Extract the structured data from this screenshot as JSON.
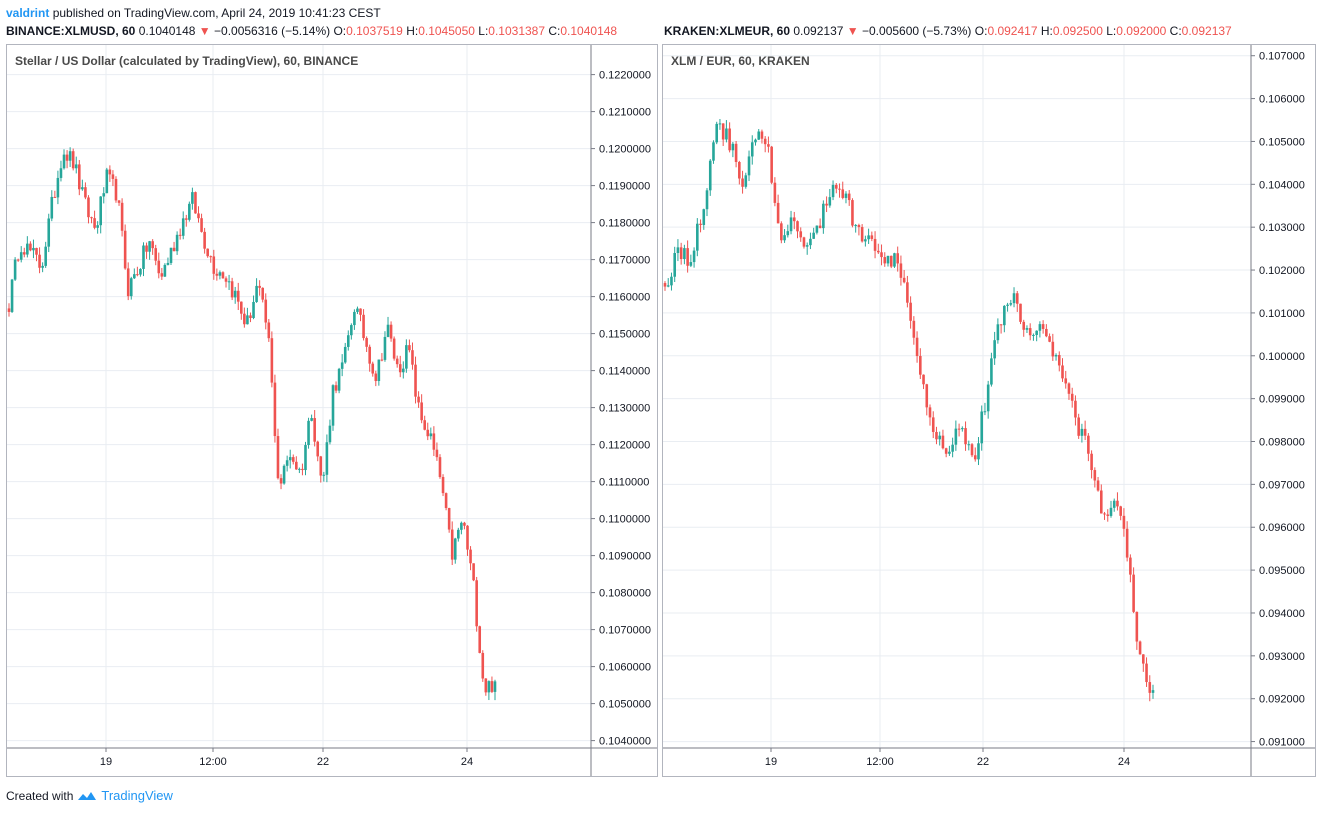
{
  "header": {
    "author": "valdrint",
    "published": "published on TradingView.com, April 24, 2019 10:41:23 CEST"
  },
  "panels": [
    {
      "symbol": "BINANCE:XLMUSD, 60",
      "last": "0.1040148",
      "change": "−0.0056316 (−5.14%)",
      "o_label": "O:",
      "o": "0.1037519",
      "h_label": "H:",
      "h": "0.1045050",
      "l_label": "L:",
      "l": "0.1031387",
      "c_label": "C:",
      "c": "0.1040148",
      "title": "Stellar / US Dollar (calculated by TradingView), 60, BINANCE"
    },
    {
      "symbol": "KRAKEN:XLMEUR, 60",
      "last": "0.092137",
      "change": "−0.005600 (−5.73%)",
      "o_label": "O:",
      "o": "0.092417",
      "h_label": "H:",
      "h": "0.092500",
      "l_label": "L:",
      "l": "0.092000",
      "c_label": "C:",
      "c": "0.092137",
      "title": "XLM / EUR, 60, KRAKEN"
    }
  ],
  "footer": {
    "created_with": "Created with",
    "brand": "TradingView"
  },
  "colors": {
    "up": "#26a69a",
    "down": "#ef5350",
    "grid": "#e9edf2",
    "accent": "#2196f3"
  },
  "chart_data": [
    {
      "type": "candlestick",
      "title": "Stellar / US Dollar (calculated by TradingView), 60, BINANCE",
      "interval": "60",
      "ylim": [
        0.1038,
        0.1228
      ],
      "y_ticks": [
        "0.1040000",
        "0.1050000",
        "0.1060000",
        "0.1070000",
        "0.1080000",
        "0.1090000",
        "0.1100000",
        "0.1110000",
        "0.1120000",
        "0.1130000",
        "0.1140000",
        "0.1150000",
        "0.1160000",
        "0.1170000",
        "0.1180000",
        "0.1190000",
        "0.1200000",
        "0.1210000",
        "0.1220000"
      ],
      "x_ticks": [
        "19",
        "12:00",
        "22",
        "24"
      ],
      "grid": true,
      "legend": "none",
      "close_path": [
        0.1158,
        0.1175,
        0.1172,
        0.1168,
        0.1185,
        0.12,
        0.1196,
        0.1185,
        0.1178,
        0.1192,
        0.1188,
        0.1162,
        0.1168,
        0.1175,
        0.1165,
        0.1172,
        0.118,
        0.1186,
        0.1176,
        0.1168,
        0.1166,
        0.116,
        0.1152,
        0.1163,
        0.115,
        0.1108,
        0.1118,
        0.1112,
        0.113,
        0.1108,
        0.1135,
        0.1142,
        0.1158,
        0.1148,
        0.1138,
        0.1152,
        0.114,
        0.1146,
        0.1128,
        0.1122,
        0.111,
        0.109,
        0.11,
        0.1082,
        0.1054,
        0.1056
      ]
    },
    {
      "type": "candlestick",
      "title": "XLM / EUR, 60, KRAKEN",
      "interval": "60",
      "ylim": [
        0.09085,
        0.10725
      ],
      "y_ticks": [
        "0.091000",
        "0.092000",
        "0.093000",
        "0.094000",
        "0.095000",
        "0.096000",
        "0.097000",
        "0.098000",
        "0.099000",
        "0.100000",
        "0.101000",
        "0.102000",
        "0.103000",
        "0.104000",
        "0.105000",
        "0.106000",
        "0.107000"
      ],
      "x_ticks": [
        "19",
        "12:00",
        "22",
        "24"
      ],
      "grid": true,
      "legend": "none",
      "close_path": [
        0.1016,
        0.1025,
        0.1022,
        0.1035,
        0.1055,
        0.105,
        0.104,
        0.1052,
        0.1048,
        0.1025,
        0.1032,
        0.1025,
        0.103,
        0.104,
        0.1038,
        0.1028,
        0.103,
        0.102,
        0.1025,
        0.1012,
        0.0995,
        0.0982,
        0.0978,
        0.0985,
        0.0975,
        0.099,
        0.1008,
        0.1015,
        0.1005,
        0.1008,
        0.1002,
        0.0995,
        0.0985,
        0.0978,
        0.0962,
        0.0968,
        0.0955,
        0.0928,
        0.0922
      ]
    }
  ]
}
